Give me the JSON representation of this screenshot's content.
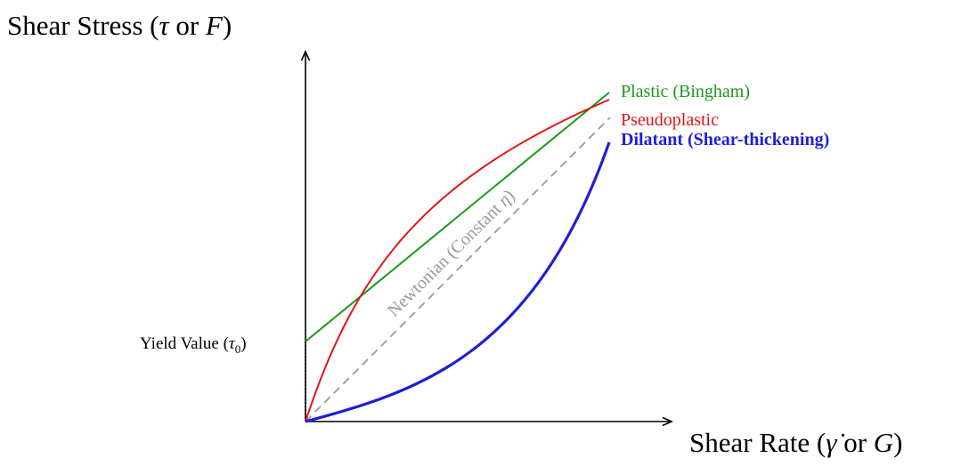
{
  "labels": {
    "y_axis": "Shear Stress (τ or F)",
    "x_axis": "Shear Rate (γ̇ or G)",
    "yield_value": "Yield Value (τ0)",
    "newtonian": "Newtonian (Constant η)"
  },
  "curves": [
    {
      "id": "plastic",
      "label": "Plastic (Bingham)",
      "color": "#1a9a1a",
      "bold": false
    },
    {
      "id": "pseudoplastic",
      "label": "Pseudoplastic",
      "color": "#e31414",
      "bold": false
    },
    {
      "id": "dilatant",
      "label": "Dilatant (Shear-thickening)",
      "color": "#1f1fd6",
      "bold": true
    },
    {
      "id": "newtonian",
      "label": "Newtonian (Constant η)",
      "color": "#9a9a9a",
      "bold": false,
      "dashed": true
    }
  ],
  "colors": {
    "axis": "#000000"
  }
}
